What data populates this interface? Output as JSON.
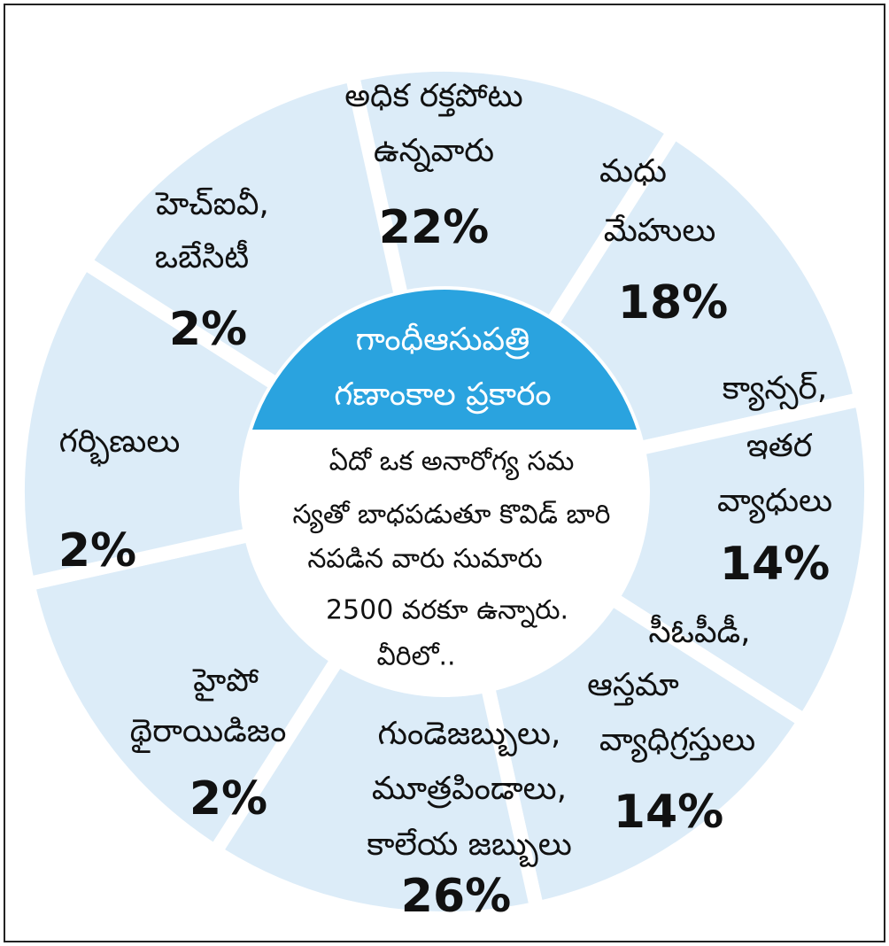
{
  "center": {
    "title": [
      "గాంధీఆసుపత్రి",
      "గణాంకాల ప్రకారం"
    ],
    "body": [
      "ఏదో ఒక అనారోగ్య సమ",
      "స్యతో బాధపడుతూ కొవిడ్ బారి",
      "నపడిన వారు సుమారు",
      "2500 వరకూ ఉన్నారు.",
      "వీరిలో.."
    ]
  },
  "segments": [
    {
      "lines": [
        "అధిక రక్తపోటు",
        "ఉన్నవారు"
      ],
      "value": "22%"
    },
    {
      "lines": [
        "మధు",
        "మేహులు"
      ],
      "value": "18%"
    },
    {
      "lines": [
        "క్యాన్సర్,",
        "ఇతర",
        "వ్యాధులు"
      ],
      "value": "14%"
    },
    {
      "lines": [
        "సీఓపీడీ,",
        "ఆస్తమా",
        "వ్యాధిగ్రస్తులు"
      ],
      "value": "14%"
    },
    {
      "lines": [
        "గుండెజబ్బులు,",
        "మూత్రపిండాలు,",
        "కాలేయ జబ్బులు"
      ],
      "value": "26%"
    },
    {
      "lines": [
        "హైపో",
        "థైరాయిడిజం"
      ],
      "value": "2%"
    },
    {
      "lines": [
        "గర్భిణులు"
      ],
      "value": "2%"
    },
    {
      "lines": [
        "హెచ్ఐవీ,",
        "ఒబేసిటీ"
      ],
      "value": "2%"
    }
  ]
}
